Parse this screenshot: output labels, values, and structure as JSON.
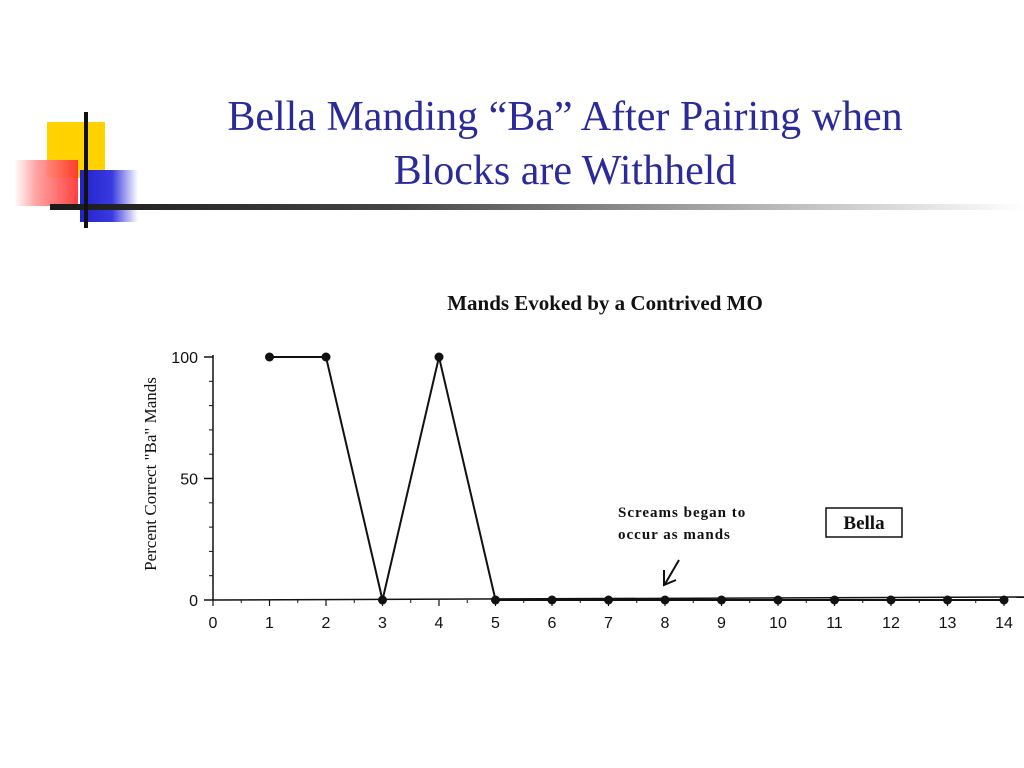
{
  "slide": {
    "title_line1": "Bella Manding “Ba” After Pairing when",
    "title_line2": "Blocks are Withheld"
  },
  "chart_data": {
    "type": "line",
    "title": "Mands Evoked by a Contrived MO",
    "xlabel": "",
    "ylabel": "Percent Correct \"Ba\" Mands",
    "x": [
      1,
      2,
      3,
      4,
      5,
      6,
      7,
      8,
      9,
      10,
      11,
      12,
      13,
      14
    ],
    "series": [
      {
        "values": [
          100,
          100,
          0,
          100,
          0,
          0,
          0,
          0,
          0,
          0,
          0,
          0,
          0,
          0
        ]
      }
    ],
    "xlim": [
      0,
      14
    ],
    "ylim": [
      0,
      100
    ],
    "x_ticks": [
      0,
      1,
      2,
      3,
      4,
      5,
      6,
      7,
      8,
      9,
      10,
      11,
      12,
      13,
      14
    ],
    "y_ticks": [
      0,
      50,
      100
    ],
    "legend_label": "Bella",
    "annotation": {
      "line1": "Screams began to",
      "line2": "occur as mands",
      "x": 8
    },
    "grid": false,
    "colors": {
      "line": "#111111",
      "slide_title": "#2a2a9a"
    }
  }
}
